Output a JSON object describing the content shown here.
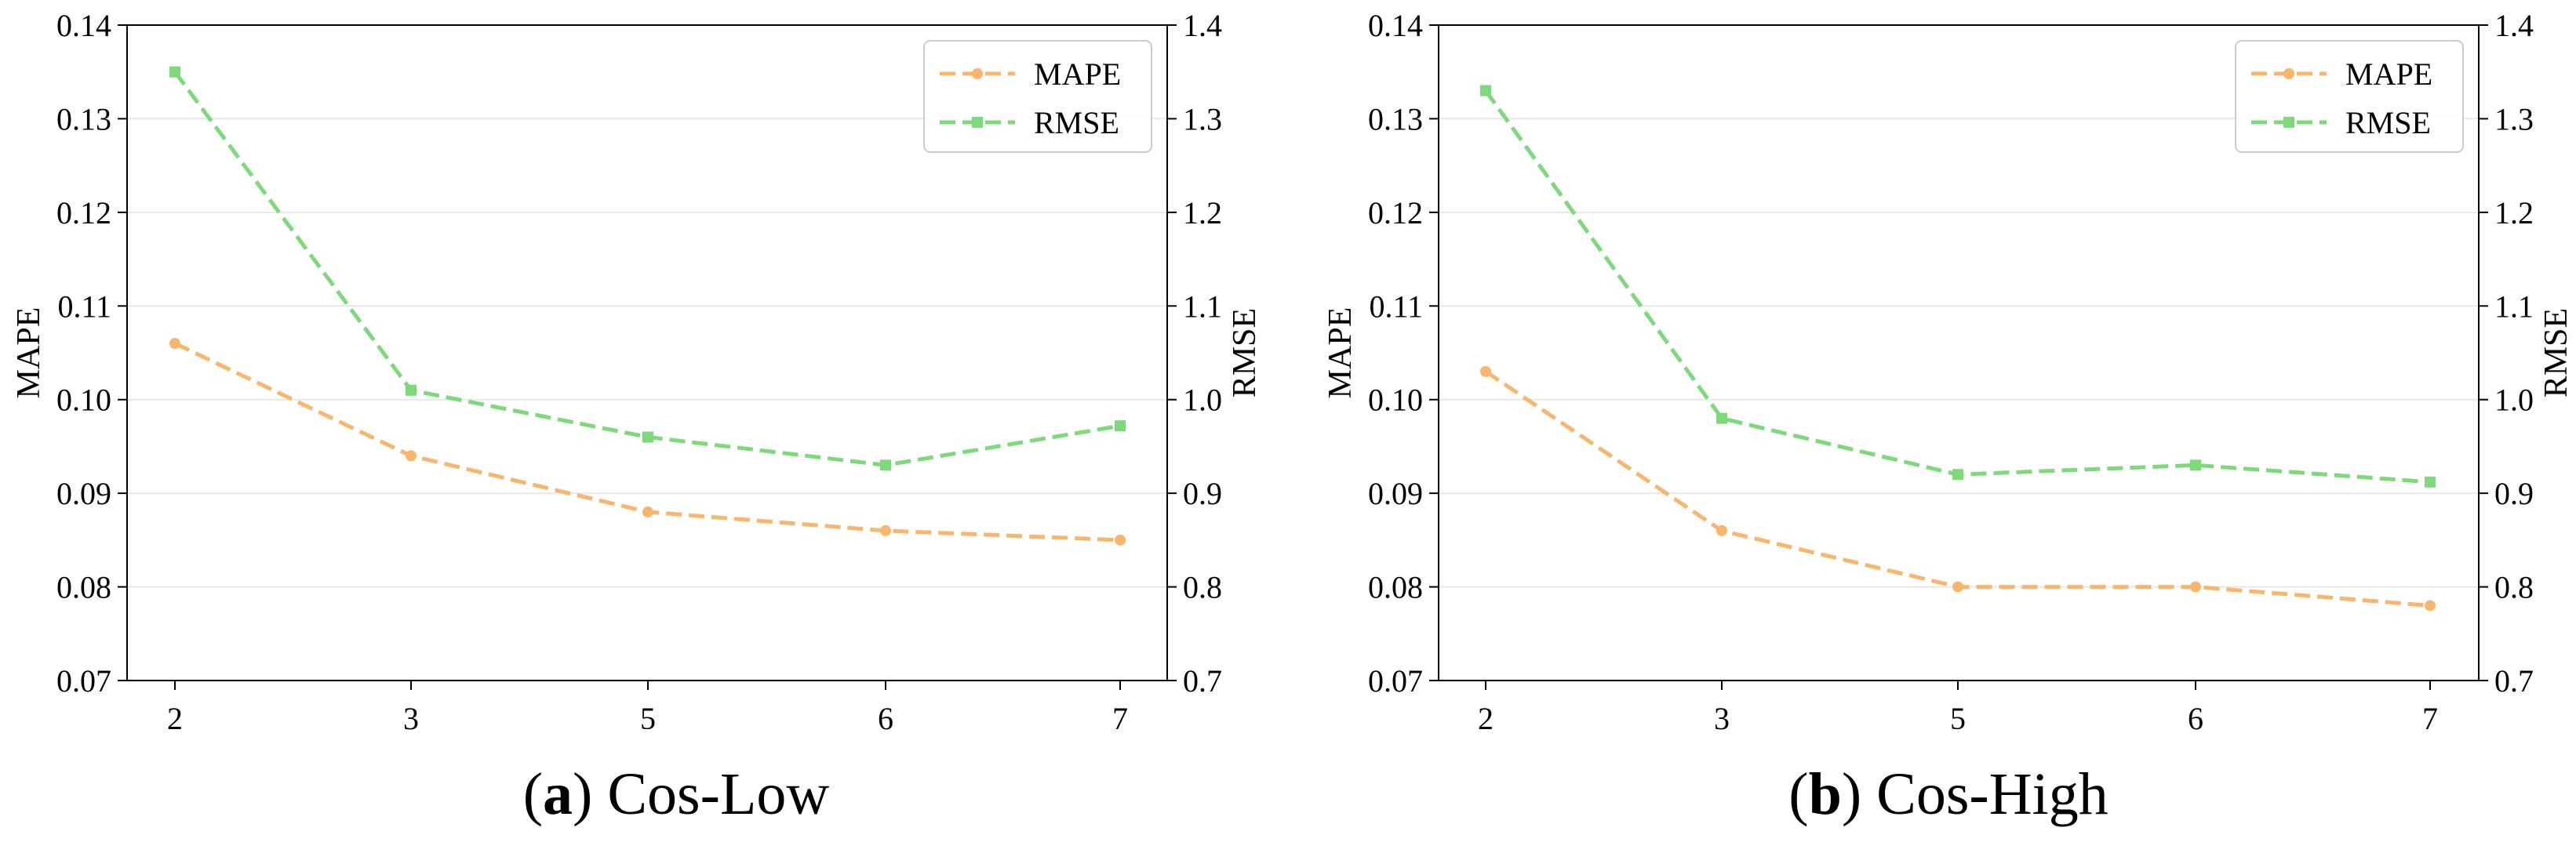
{
  "colors": {
    "mape": "#f8b56c",
    "rmse": "#7dd97a",
    "grid": "#e8e8e8",
    "axis": "#000000"
  },
  "chart_data": [
    {
      "type": "line",
      "panel_label": "(a)",
      "caption_label": "a",
      "caption_text": "Cos-Low",
      "categories": [
        "2",
        "3",
        "5",
        "6",
        "7"
      ],
      "xlabel": "",
      "ylabel": "MAPE",
      "y2label": "RMSE",
      "ylim": [
        0.07,
        0.14
      ],
      "y2lim": [
        0.7,
        1.4
      ],
      "yticks": [
        "0.07",
        "0.08",
        "0.09",
        "0.10",
        "0.11",
        "0.12",
        "0.13",
        "0.14"
      ],
      "y2ticks": [
        "0.7",
        "0.8",
        "0.9",
        "1.0",
        "1.1",
        "1.2",
        "1.3",
        "1.4"
      ],
      "legend_position": "top-right",
      "series": [
        {
          "name": "MAPE",
          "axis": "left",
          "marker": "circle",
          "values": [
            0.106,
            0.094,
            0.088,
            0.086,
            0.085
          ]
        },
        {
          "name": "RMSE",
          "axis": "right",
          "marker": "square",
          "values": [
            1.35,
            1.01,
            0.96,
            0.93,
            0.972
          ]
        }
      ]
    },
    {
      "type": "line",
      "panel_label": "(b)",
      "caption_label": "b",
      "caption_text": "Cos-High",
      "categories": [
        "2",
        "3",
        "5",
        "6",
        "7"
      ],
      "xlabel": "",
      "ylabel": "MAPE",
      "y2label": "RMSE",
      "ylim": [
        0.07,
        0.14
      ],
      "y2lim": [
        0.7,
        1.4
      ],
      "yticks": [
        "0.07",
        "0.08",
        "0.09",
        "0.10",
        "0.11",
        "0.12",
        "0.13",
        "0.14"
      ],
      "y2ticks": [
        "0.7",
        "0.8",
        "0.9",
        "1.0",
        "1.1",
        "1.2",
        "1.3",
        "1.4"
      ],
      "legend_position": "top-right",
      "series": [
        {
          "name": "MAPE",
          "axis": "left",
          "marker": "circle",
          "values": [
            0.103,
            0.086,
            0.08,
            0.08,
            0.078
          ]
        },
        {
          "name": "RMSE",
          "axis": "right",
          "marker": "square",
          "values": [
            1.33,
            0.98,
            0.92,
            0.93,
            0.912
          ]
        }
      ]
    }
  ]
}
